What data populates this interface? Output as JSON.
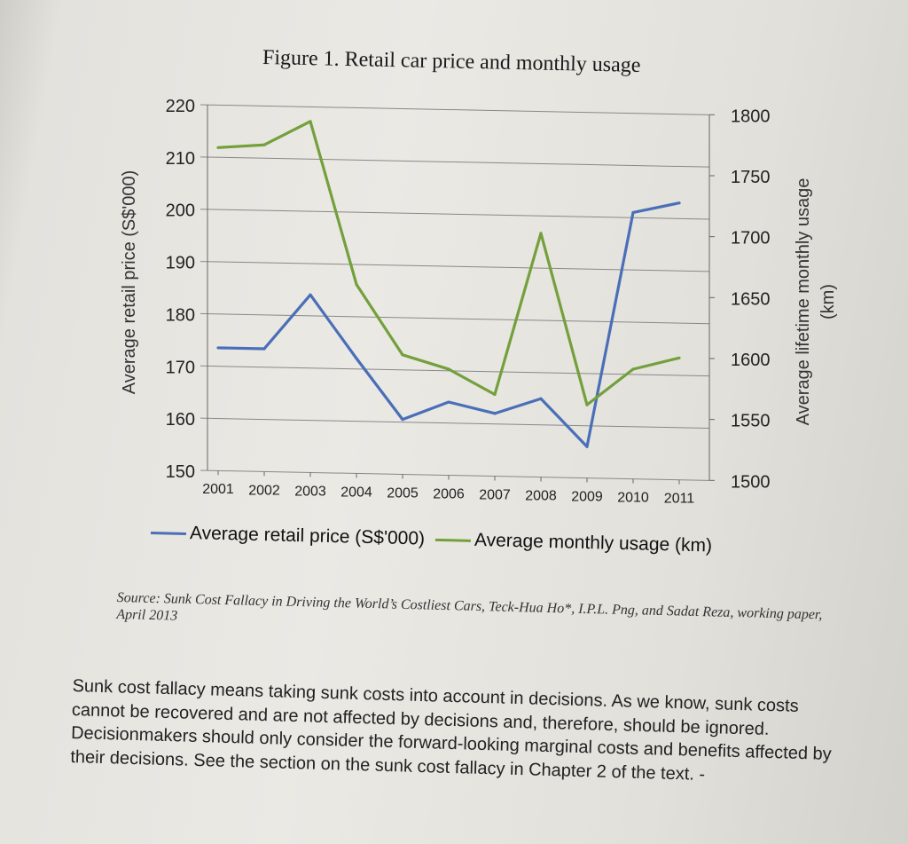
{
  "colors": {
    "price_series": "#4a6fb8",
    "usage_series": "#73a03c",
    "grid": "#888888"
  },
  "figure_title": "Figure 1. Retail car price and monthly usage",
  "chart_data": {
    "type": "line",
    "title": "Figure 1. Retail car price and monthly usage",
    "x": [
      "2001",
      "2002",
      "2003",
      "2004",
      "2005",
      "2006",
      "2007",
      "2008",
      "2009",
      "2010",
      "2011"
    ],
    "y_left_label": "Average retail price (S$'000)",
    "y_left_ticks": [
      "150",
      "160",
      "170",
      "180",
      "190",
      "200",
      "210",
      "220"
    ],
    "y_left_range": [
      150,
      220
    ],
    "y_right_label_line1": "Average lifetime monthly usage",
    "y_right_label_line2": "(km)",
    "y_right_ticks": [
      "1500",
      "1550",
      "1600",
      "1650",
      "1700",
      "1750",
      "1800"
    ],
    "y_right_range": [
      1500,
      1800
    ],
    "grid": true,
    "legend_position": "bottom",
    "series": [
      {
        "name": "Average retail price (S$'000)",
        "axis": "left",
        "values": [
          173.5,
          173.5,
          184,
          172,
          160.5,
          164,
          162,
          165,
          156,
          201,
          203
        ]
      },
      {
        "name": "Average monthly usage (km)",
        "axis": "right",
        "values": [
          1765,
          1768,
          1788,
          1655,
          1598,
          1587,
          1567,
          1700,
          1560,
          1590,
          1600
        ]
      }
    ]
  },
  "legend": {
    "price_label": "Average retail price (S$'000)",
    "usage_label": "Average monthly usage (km)"
  },
  "source_note": "Source: Sunk Cost Fallacy in Driving the World’s Costliest Cars, Teck-Hua Ho*, I.P.L. Png, and Sadat Reza, working paper, April 2013",
  "body_text": "Sunk cost fallacy means taking sunk costs into account in decisions. As we know, sunk costs cannot be recovered and are not affected by decisions and, therefore, should be ignored. Decisionmakers should only consider the forward-looking marginal costs and benefits affected by their decisions. See the section on the sunk cost fallacy in Chapter 2 of the text. -"
}
